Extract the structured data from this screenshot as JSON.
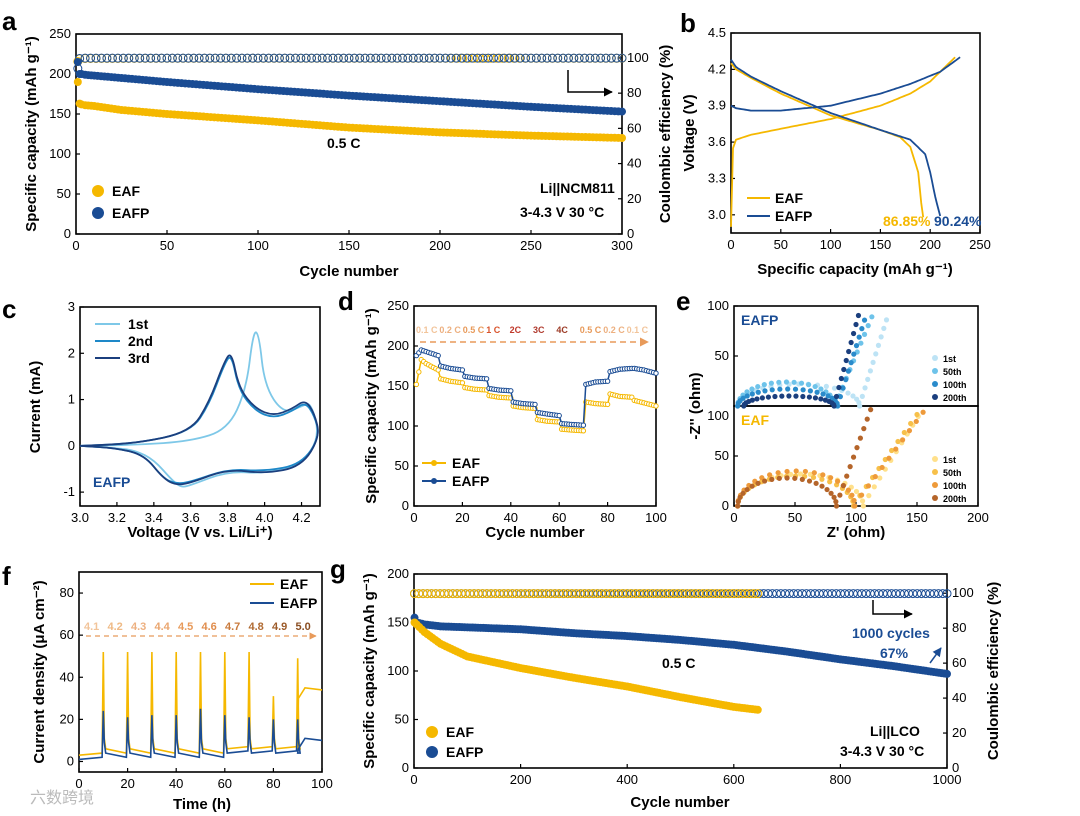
{
  "colors": {
    "eaf": "#F5B800",
    "eafp": "#1A4C94",
    "cv1": "#7EC8E8",
    "cv2": "#1E88C8",
    "cv3": "#1B3F7E",
    "cycle_col": "#E07020",
    "ref": "#E89A5A"
  },
  "watermark": "六数跨境",
  "chart_data": [
    {
      "panel": "a",
      "type": "scatter",
      "xlabel": "Cycle number",
      "ylabel": "Specific capacity (mAh g⁻¹)",
      "y2label": "Coulombic efficiency (%)",
      "xlim": [
        0,
        300
      ],
      "ylim": [
        0,
        250
      ],
      "y2lim": [
        0,
        113.6
      ],
      "xticks": [
        0,
        50,
        100,
        150,
        200,
        250,
        300
      ],
      "yticks": [
        0,
        50,
        100,
        150,
        200,
        250
      ],
      "y2ticks": [
        0,
        20,
        40,
        60,
        80,
        100
      ],
      "series": [
        {
          "name": "EAF",
          "x": [
            1,
            2,
            3,
            5,
            10,
            25,
            50,
            100,
            150,
            200,
            250,
            300
          ],
          "values": [
            190,
            163,
            162,
            161,
            160,
            155,
            150,
            142,
            133,
            127,
            123,
            120
          ]
        },
        {
          "name": "EAFP",
          "x": [
            1,
            2,
            3,
            5,
            10,
            25,
            50,
            100,
            150,
            200,
            250,
            300
          ],
          "values": [
            215,
            200,
            200,
            199,
            198,
            195,
            190,
            181,
            173,
            166,
            159,
            153
          ]
        },
        {
          "name": "EAF CE",
          "x": [
            1,
            2,
            5,
            50,
            100,
            150,
            200,
            225,
            250,
            300
          ],
          "values": [
            98,
            99.5,
            99.7,
            99.8,
            99.8,
            99.8,
            99.8,
            99.8,
            99.8,
            99.8
          ]
        },
        {
          "name": "EAFP CE",
          "x": [
            1,
            2,
            5,
            50,
            100,
            150,
            200,
            250,
            300
          ],
          "values": [
            94,
            99.7,
            99.9,
            99.9,
            99.9,
            99.9,
            99.9,
            99.9,
            99.9
          ]
        }
      ],
      "legend": [
        "EAF",
        "EAFP"
      ],
      "annotations": [
        "0.5 C",
        "Li||NCM811",
        "3-4.3 V   30 °C"
      ]
    },
    {
      "panel": "b",
      "type": "line",
      "xlabel": "Specific capacity (mAh g⁻¹)",
      "ylabel": "Voltage (V)",
      "xlim": [
        0,
        250
      ],
      "ylim": [
        2.85,
        4.5
      ],
      "xticks": [
        0,
        50,
        100,
        150,
        200,
        250
      ],
      "yticks": [
        3.0,
        3.3,
        3.6,
        3.9,
        4.2,
        4.5
      ],
      "series": [
        {
          "name": "EAF",
          "role": "charge",
          "x": [
            0,
            2,
            5,
            20,
            50,
            100,
            150,
            180,
            200,
            225
          ],
          "values": [
            2.9,
            3.55,
            3.62,
            3.66,
            3.71,
            3.79,
            3.9,
            4.0,
            4.1,
            4.3
          ]
        },
        {
          "name": "EAF",
          "role": "discharge",
          "x": [
            0,
            5,
            20,
            50,
            100,
            150,
            170,
            180,
            188,
            191,
            193
          ],
          "values": [
            4.25,
            4.2,
            4.13,
            4.0,
            3.82,
            3.7,
            3.64,
            3.56,
            3.35,
            3.1,
            2.98
          ]
        },
        {
          "name": "EAFP",
          "role": "charge",
          "x": [
            0,
            5,
            20,
            50,
            100,
            150,
            180,
            210,
            230
          ],
          "values": [
            3.9,
            3.88,
            3.86,
            3.86,
            3.9,
            4.0,
            4.08,
            4.18,
            4.3
          ]
        },
        {
          "name": "EAFP",
          "role": "discharge",
          "x": [
            0,
            5,
            20,
            50,
            100,
            150,
            180,
            195,
            200,
            205,
            210
          ],
          "values": [
            4.28,
            4.22,
            4.14,
            4.02,
            3.84,
            3.7,
            3.62,
            3.5,
            3.35,
            3.15,
            2.99
          ]
        }
      ],
      "legend": [
        "EAF",
        "EAFP"
      ],
      "annotations": [
        "86.85%",
        "90.24%"
      ]
    },
    {
      "panel": "c",
      "type": "line",
      "xlabel": "Voltage (V vs. Li/Li⁺)",
      "ylabel": "Current (mA)",
      "xlim": [
        3.0,
        4.3
      ],
      "ylim": [
        -1.3,
        3.0
      ],
      "xticks": [
        3.0,
        3.2,
        3.4,
        3.6,
        3.8,
        4.0,
        4.2
      ],
      "yticks": [
        -1,
        0,
        1,
        2,
        3
      ],
      "series": [
        {
          "name": "1st",
          "x": [
            3.0,
            3.3,
            3.6,
            3.8,
            3.9,
            3.94,
            3.97,
            4.0,
            4.1,
            4.2,
            4.25,
            4.3,
            4.2,
            4.0,
            3.8,
            3.6,
            3.55,
            3.5,
            3.4,
            3.3,
            3.2,
            3.0
          ],
          "values": [
            0,
            0.02,
            0.1,
            0.35,
            1.2,
            2.5,
            2.4,
            1.3,
            0.7,
            0.85,
            0.95,
            0.2,
            -0.4,
            -0.6,
            -0.55,
            -0.85,
            -0.9,
            -0.75,
            -0.3,
            -0.1,
            -0.05,
            0
          ]
        },
        {
          "name": "2nd",
          "x": [
            3.0,
            3.3,
            3.6,
            3.7,
            3.78,
            3.82,
            3.86,
            3.95,
            4.05,
            4.15,
            4.22,
            4.27,
            4.3,
            4.2,
            4.0,
            3.8,
            3.6,
            3.52,
            3.45,
            3.35,
            3.2,
            3.0
          ],
          "values": [
            0,
            0.05,
            0.3,
            0.9,
            1.75,
            2.0,
            1.2,
            0.75,
            0.6,
            0.75,
            0.95,
            0.65,
            0.2,
            -0.4,
            -0.55,
            -0.5,
            -0.78,
            -0.82,
            -0.7,
            -0.2,
            -0.05,
            0
          ]
        },
        {
          "name": "3rd",
          "x": [
            3.0,
            3.3,
            3.6,
            3.7,
            3.78,
            3.82,
            3.86,
            3.95,
            4.05,
            4.15,
            4.22,
            4.27,
            4.3,
            4.2,
            4.0,
            3.8,
            3.6,
            3.52,
            3.45,
            3.35,
            3.2,
            3.0
          ],
          "values": [
            0,
            0.05,
            0.3,
            0.95,
            1.8,
            2.05,
            1.25,
            0.8,
            0.65,
            0.8,
            1.0,
            0.7,
            0.2,
            -0.45,
            -0.6,
            -0.5,
            -0.8,
            -0.85,
            -0.7,
            -0.2,
            -0.05,
            0
          ]
        }
      ],
      "legend": [
        "1st",
        "2nd",
        "3rd"
      ],
      "annotations": [
        "EAFP"
      ]
    },
    {
      "panel": "d",
      "type": "scatter",
      "xlabel": "Cycle number",
      "ylabel": "Specific capacity (mAh g⁻¹)",
      "xlim": [
        0,
        100
      ],
      "ylim": [
        0,
        250
      ],
      "xticks": [
        0,
        20,
        40,
        60,
        80,
        100
      ],
      "yticks": [
        0,
        50,
        100,
        150,
        200,
        250
      ],
      "series": [
        {
          "name": "EAF",
          "x": [
            1,
            3,
            5,
            10,
            11,
            15,
            20,
            21,
            25,
            30,
            31,
            35,
            40,
            41,
            45,
            50,
            51,
            55,
            60,
            61,
            65,
            70,
            71,
            75,
            80,
            81,
            85,
            90,
            91,
            95,
            100
          ],
          "values": [
            152,
            183,
            178,
            170,
            159,
            156,
            154,
            148,
            146,
            145,
            138,
            136,
            135,
            125,
            123,
            122,
            108,
            106,
            105,
            96,
            95,
            94,
            130,
            128,
            127,
            140,
            137,
            136,
            132,
            129,
            125
          ]
        },
        {
          "name": "EAFP",
          "x": [
            1,
            3,
            5,
            10,
            11,
            15,
            20,
            21,
            25,
            30,
            31,
            35,
            40,
            41,
            45,
            50,
            51,
            55,
            60,
            61,
            65,
            70,
            71,
            75,
            80,
            81,
            85,
            90,
            91,
            95,
            100
          ],
          "values": [
            188,
            195,
            193,
            188,
            175,
            172,
            170,
            162,
            160,
            159,
            147,
            145,
            144,
            130,
            128,
            127,
            117,
            115,
            113,
            103,
            102,
            101,
            152,
            155,
            156,
            168,
            171,
            172,
            172,
            170,
            166
          ]
        }
      ],
      "rate_labels": [
        "0.1 C",
        "0.2 C",
        "0.5 C",
        "1 C",
        "2C",
        "3C",
        "4C",
        "0.5 C",
        "0.2 C",
        "0.1 C"
      ],
      "legend": [
        "EAF",
        "EAFP"
      ]
    },
    {
      "panel": "e",
      "type": "scatter",
      "xlabel": "Z' (ohm)",
      "ylabel": "-Z'' (ohm)",
      "xlim": [
        0,
        200
      ],
      "ylim_top": [
        0,
        100
      ],
      "ylim_bottom": [
        0,
        100
      ],
      "xticks": [
        0,
        50,
        100,
        150,
        200
      ],
      "yticks": [
        0,
        50,
        100
      ],
      "top_label": "EAFP",
      "bottom_label": "EAF",
      "legend": [
        "1st",
        "50th",
        "100th",
        "200th"
      ]
    },
    {
      "panel": "f",
      "type": "line",
      "xlabel": "Time (h)",
      "ylabel": "Current density (μA cm⁻²)",
      "xlim": [
        0,
        100
      ],
      "ylim": [
        -5,
        90
      ],
      "xticks": [
        0,
        20,
        40,
        60,
        80,
        100
      ],
      "yticks": [
        0,
        20,
        40,
        60,
        80
      ],
      "voltage_labels": [
        "4.1",
        "4.2",
        "4.3",
        "4.4",
        "4.5",
        "4.6",
        "4.7",
        "4.8",
        "4.9",
        "5.0"
      ],
      "peaks": {
        "EAF": [
          52,
          52,
          52,
          52,
          52,
          52,
          52,
          31,
          49,
          35
        ],
        "EAFP": [
          24,
          21,
          22,
          22,
          25,
          22,
          21,
          20,
          20,
          11
        ]
      },
      "legend": [
        "EAF",
        "EAFP"
      ]
    },
    {
      "panel": "g",
      "type": "scatter",
      "xlabel": "Cycle number",
      "ylabel": "Specific capacity (mAh g⁻¹)",
      "y2label": "Coulombic efficiency (%)",
      "xlim": [
        0,
        1000
      ],
      "ylim": [
        0,
        200
      ],
      "y2lim": [
        0,
        111
      ],
      "xticks": [
        0,
        200,
        400,
        600,
        800,
        1000
      ],
      "yticks": [
        0,
        50,
        100,
        150,
        200
      ],
      "y2ticks": [
        0,
        20,
        40,
        60,
        80,
        100
      ],
      "series": [
        {
          "name": "EAF",
          "x": [
            1,
            5,
            20,
            50,
            100,
            200,
            300,
            400,
            500,
            600,
            645
          ],
          "values": [
            150,
            148,
            140,
            128,
            115,
            103,
            93,
            84,
            73,
            63,
            60
          ]
        },
        {
          "name": "EAFP",
          "x": [
            1,
            5,
            20,
            50,
            100,
            200,
            300,
            400,
            500,
            600,
            700,
            800,
            900,
            1000
          ],
          "values": [
            155,
            150,
            148,
            146,
            145,
            143,
            139,
            136,
            132,
            127,
            120,
            112,
            105,
            97
          ]
        }
      ],
      "legend": [
        "EAF",
        "EAFP"
      ],
      "annotations": [
        "0.5 C",
        "1000 cycles",
        "67%",
        "Li||LCO",
        "3-4.3 V 30 °C"
      ]
    }
  ],
  "panel_labels": [
    "a",
    "b",
    "c",
    "d",
    "e",
    "f",
    "g"
  ]
}
